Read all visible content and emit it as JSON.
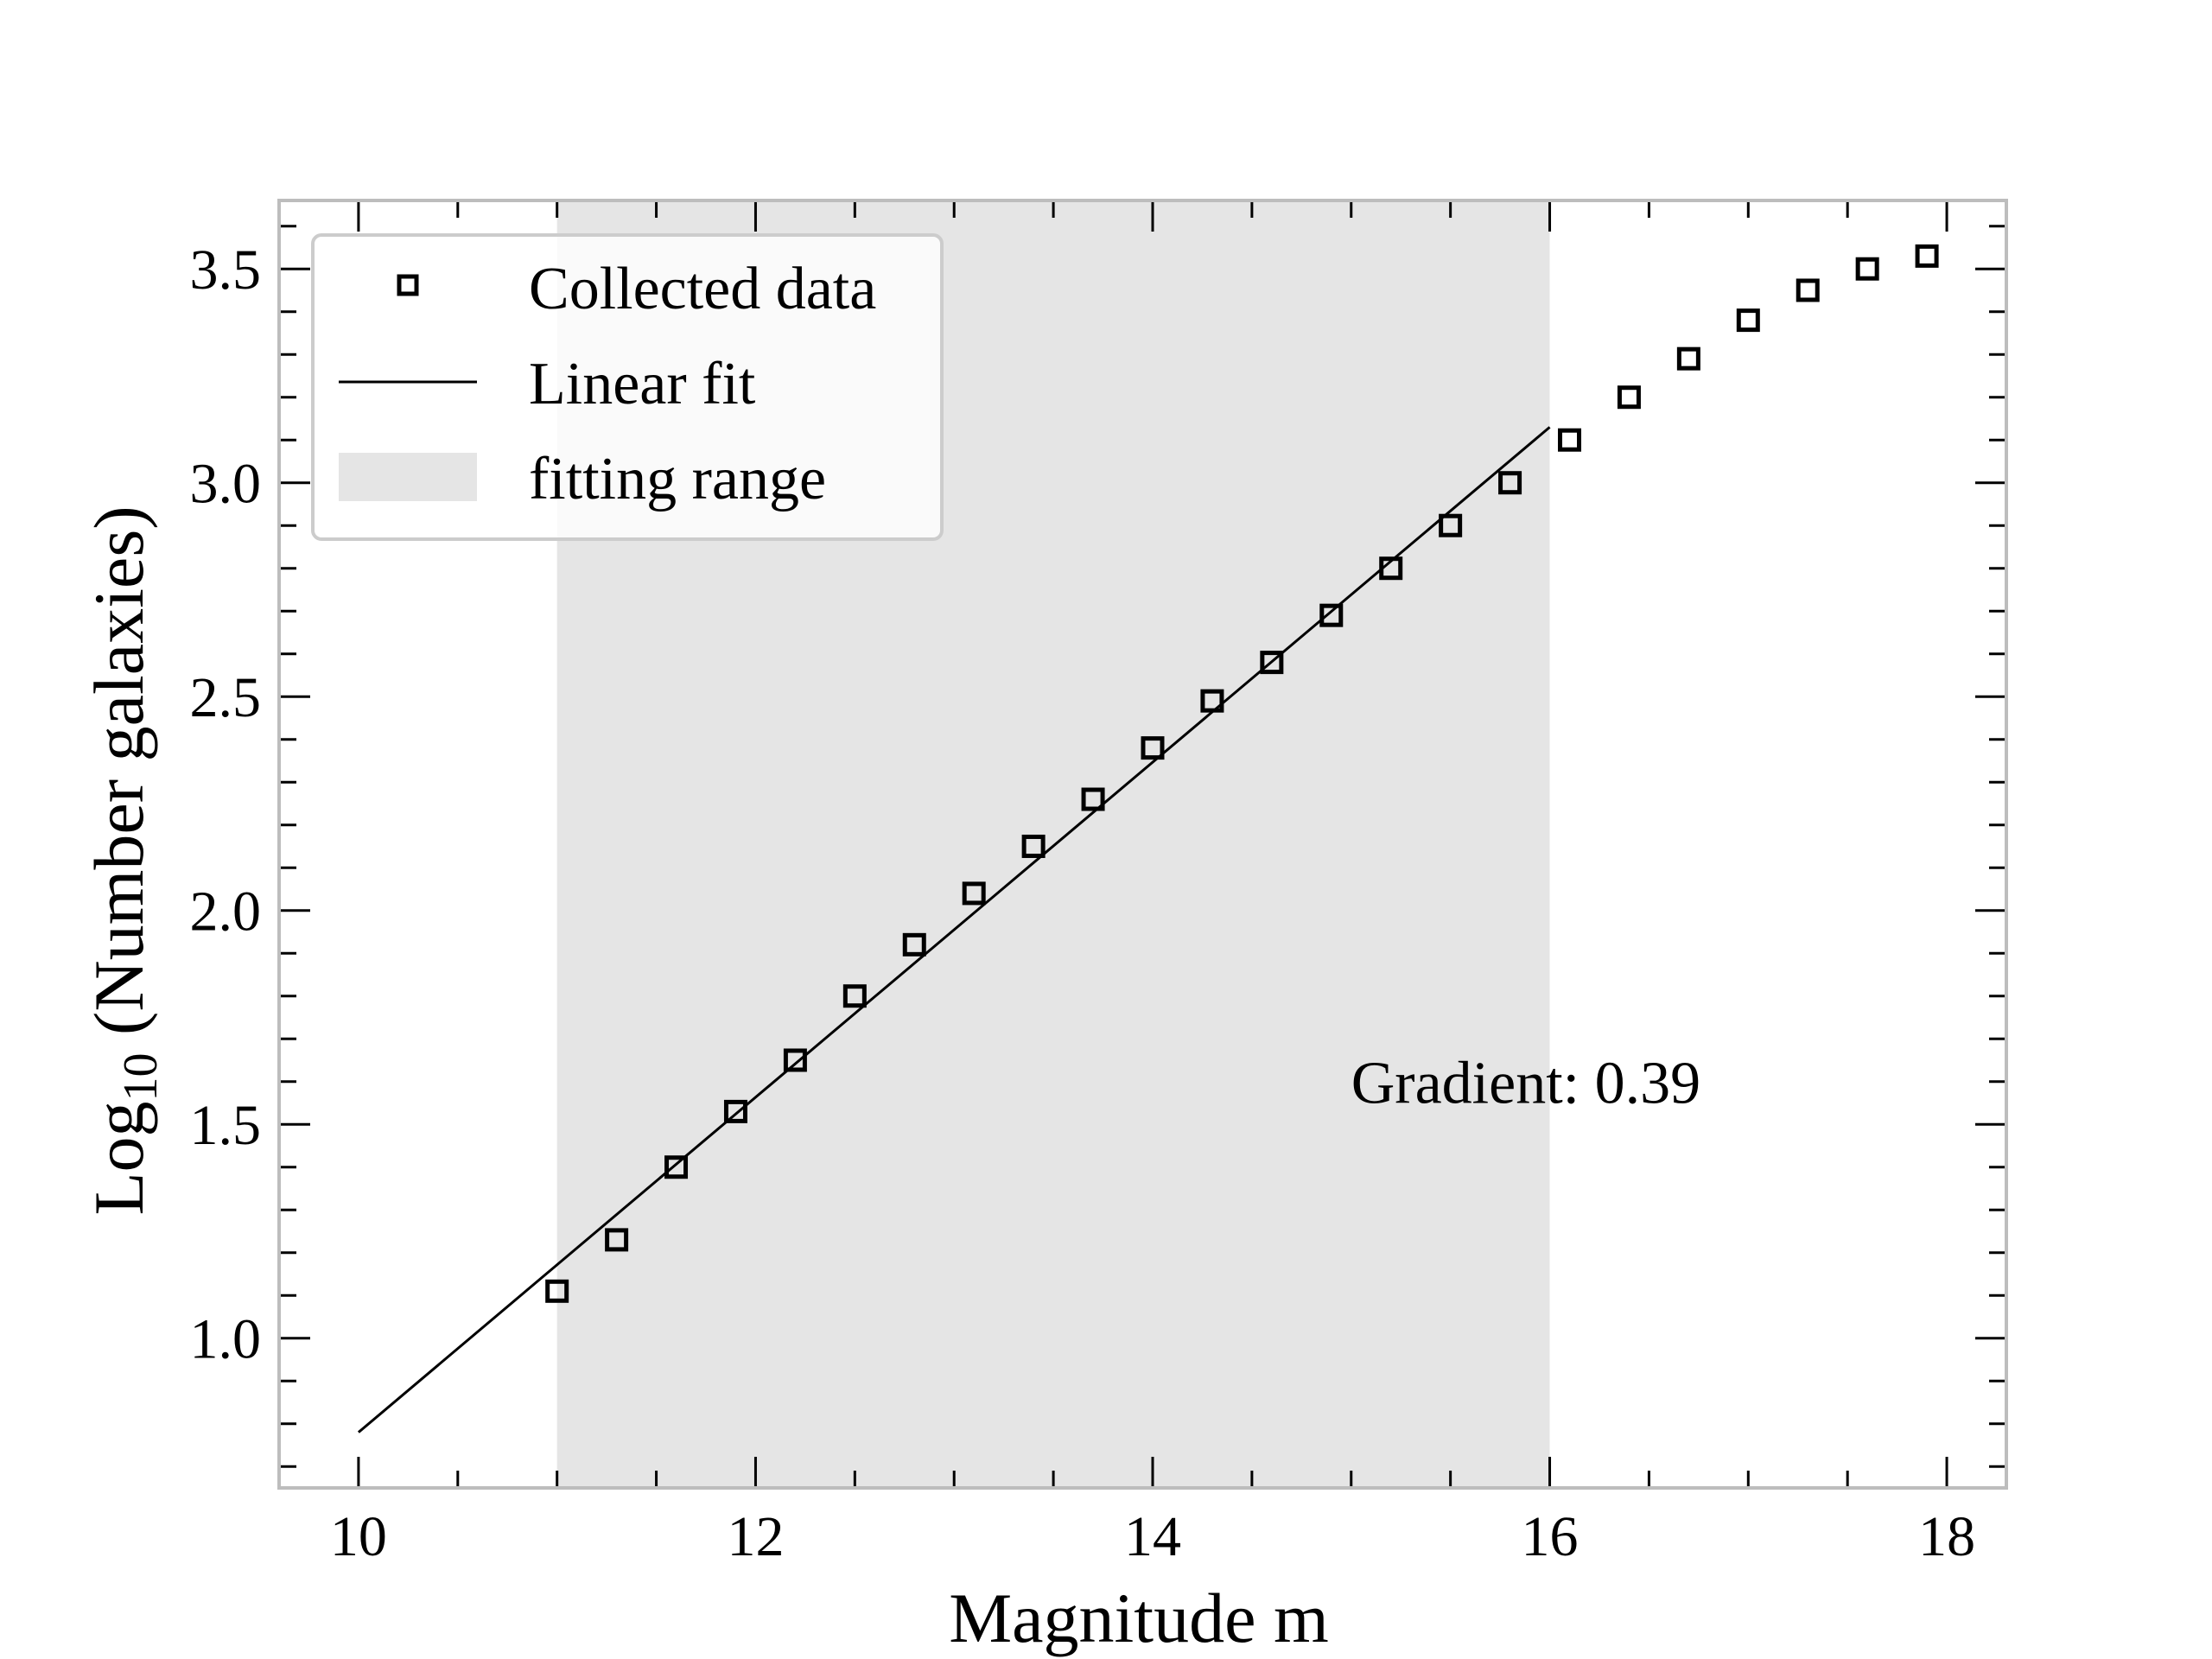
{
  "chart_data": {
    "type": "scatter",
    "xlabel": "Magnitude m",
    "ylabel_main": "Log",
    "ylabel_sub": "10",
    "ylabel_rest": " (Number galaxies)",
    "xlim": [
      9.6,
      18.3
    ],
    "ylim": [
      0.65,
      3.66
    ],
    "x_ticks": [
      10,
      12,
      14,
      16,
      18
    ],
    "x_tick_labels": [
      "10",
      "12",
      "14",
      "16",
      "18"
    ],
    "y_ticks": [
      1.0,
      1.5,
      2.0,
      2.5,
      3.0,
      3.5
    ],
    "y_tick_labels": [
      "1.0",
      "1.5",
      "2.0",
      "2.5",
      "3.0",
      "3.5"
    ],
    "x_minor_step": 0.5,
    "y_minor_step": 0.1,
    "grid": false,
    "legend_position": "top-left",
    "series": [
      {
        "name": "Collected data",
        "kind": "scatter",
        "marker": "square-open",
        "x": [
          11.0,
          11.3,
          11.6,
          11.9,
          12.2,
          12.5,
          12.8,
          13.1,
          13.4,
          13.7,
          14.0,
          14.3,
          14.6,
          14.9,
          15.2,
          15.5,
          15.8,
          16.1,
          16.4,
          16.7,
          17.0,
          17.3,
          17.6,
          17.9
        ],
        "y": [
          1.11,
          1.23,
          1.4,
          1.53,
          1.65,
          1.8,
          1.92,
          2.04,
          2.15,
          2.26,
          2.38,
          2.49,
          2.58,
          2.69,
          2.8,
          2.9,
          3.0,
          3.1,
          3.2,
          3.29,
          3.38,
          3.45,
          3.5,
          3.53
        ]
      },
      {
        "name": "Linear fit",
        "kind": "line",
        "x": [
          10.0,
          16.0
        ],
        "y": [
          0.78,
          3.13
        ]
      }
    ],
    "fitting_range": {
      "name": "fitting range",
      "x": [
        11.0,
        16.0
      ]
    },
    "annotation": {
      "text": "Gradient: 0.39",
      "x": 15.0,
      "y": 1.55
    },
    "colors": {
      "marker": "#000000",
      "line": "#000000",
      "shade": "#e5e5e5",
      "frame": "#bdbdbd",
      "legend_border": "#cccccc"
    }
  }
}
